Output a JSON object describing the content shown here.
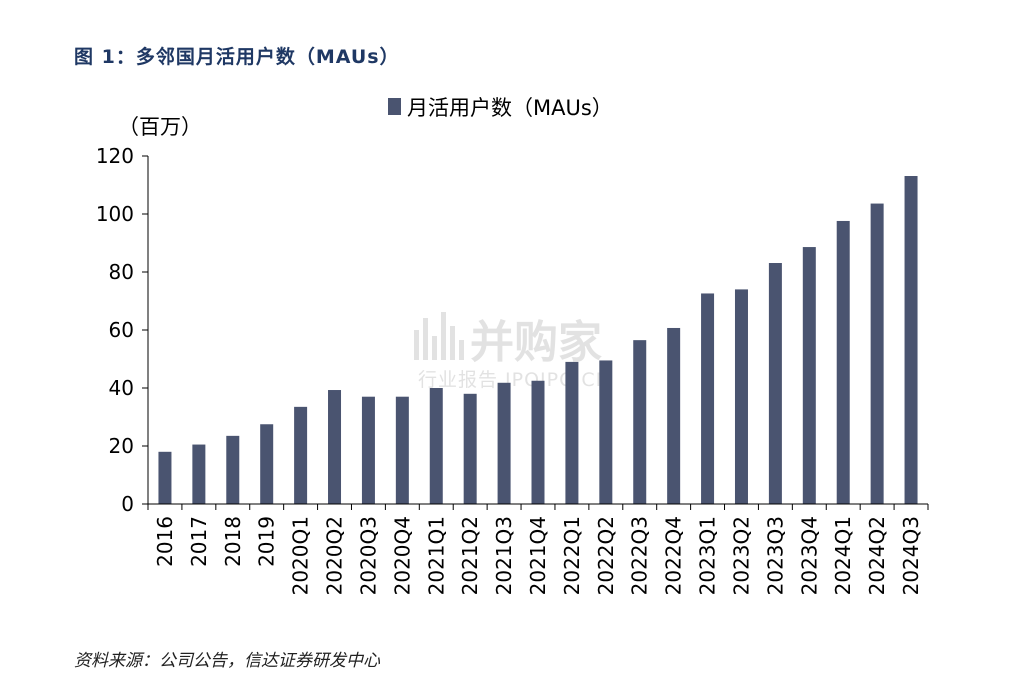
{
  "figure": {
    "title": "图 1：多邻国月活用户数（MAUs）",
    "source": "资料来源：公司公告，信达证券研发中心",
    "watermark_brand": "并购家",
    "watermark_sub": "行业报告 IPOIPO.CN"
  },
  "chart_data": {
    "type": "bar",
    "unit_label": "（百万）",
    "legend_position": "top-center",
    "grid": false,
    "ylim": [
      0,
      120
    ],
    "yticks": [
      0,
      20,
      40,
      60,
      80,
      100,
      120
    ],
    "categories": [
      "2016",
      "2017",
      "2018",
      "2019",
      "2020Q1",
      "2020Q2",
      "2020Q3",
      "2020Q4",
      "2021Q1",
      "2021Q2",
      "2021Q3",
      "2021Q4",
      "2022Q1",
      "2022Q2",
      "2022Q3",
      "2022Q4",
      "2023Q1",
      "2023Q2",
      "2023Q3",
      "2023Q4",
      "2024Q1",
      "2024Q2",
      "2024Q3"
    ],
    "series": [
      {
        "name": "月活用户数（MAUs）",
        "color": "#4a5470",
        "values": [
          18,
          20.5,
          23.5,
          27.5,
          33.5,
          39.3,
          37,
          37,
          40,
          38,
          41.8,
          42.5,
          49,
          49.5,
          56.5,
          60.7,
          72.6,
          74,
          83.1,
          88.6,
          97.6,
          103.6,
          113.1
        ]
      }
    ]
  }
}
